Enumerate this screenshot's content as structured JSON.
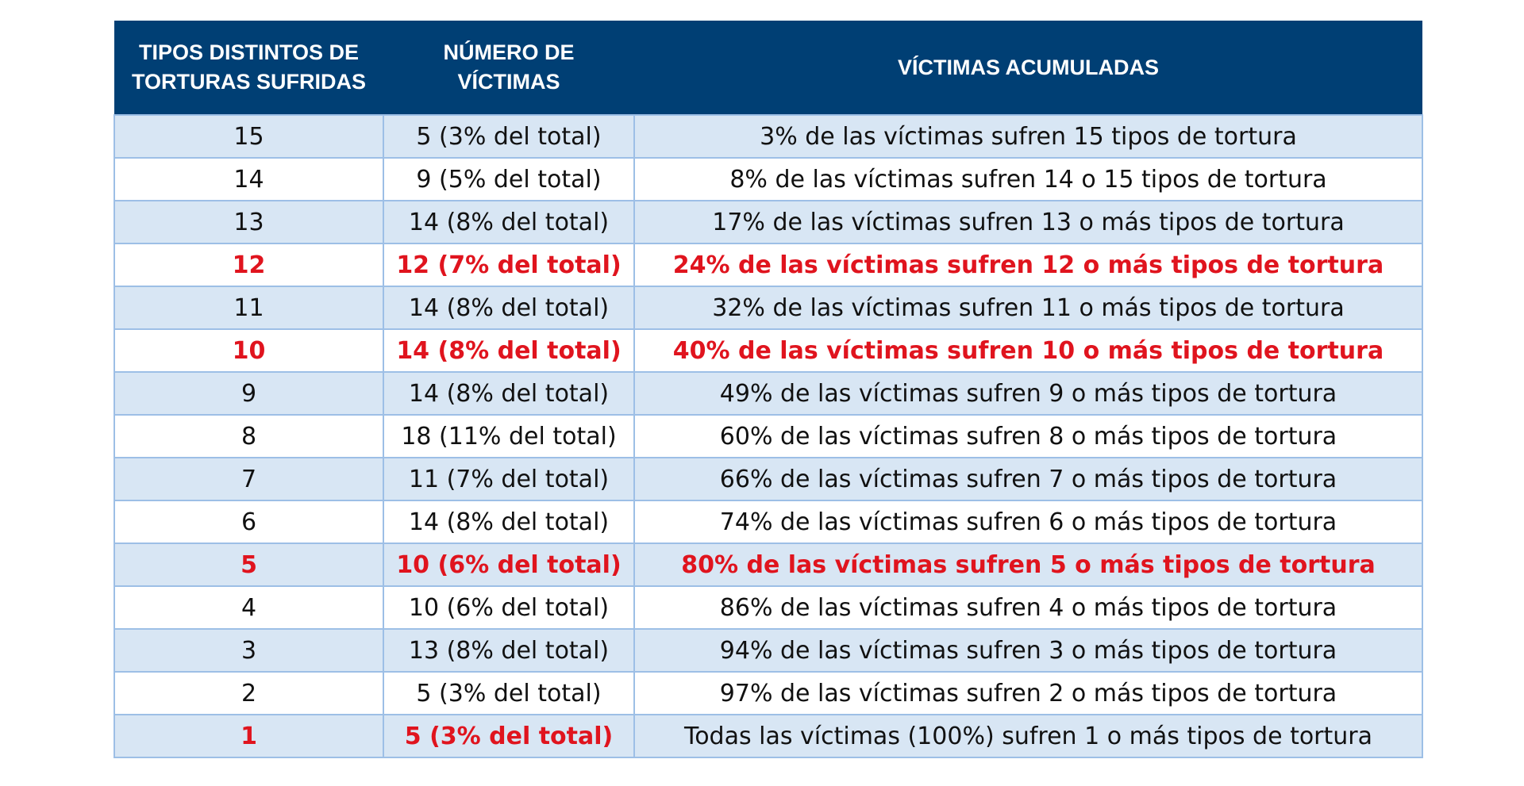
{
  "header": {
    "col1": "TIPOS DISTINTOS DE\nTORTURAS SUFRIDAS",
    "col2": "NÚMERO DE\nVÍCTIMAS",
    "col3": "VÍCTIMAS ACUMULADAS"
  },
  "colors": {
    "header_bg": "#003f74",
    "header_text": "#ffffff",
    "row_shade": "#d8e6f4",
    "highlight_text": "#e0141e",
    "grid": "#9dbfe6"
  },
  "rows": [
    {
      "tipos": "15",
      "numero": "5 (3% del total)",
      "acumuladas": "3% de las víctimas sufren 15 tipos de tortura",
      "highlight": false,
      "shaded": true
    },
    {
      "tipos": "14",
      "numero": "9 (5% del total)",
      "acumuladas": "8% de las víctimas sufren 14 o 15 tipos de tortura",
      "highlight": false,
      "shaded": false
    },
    {
      "tipos": "13",
      "numero": "14 (8% del total)",
      "acumuladas": "17% de las víctimas sufren 13 o más tipos de tortura",
      "highlight": false,
      "shaded": true
    },
    {
      "tipos": "12",
      "numero": "12 (7% del total)",
      "acumuladas": "24% de las víctimas sufren 12 o más tipos de tortura",
      "highlight": true,
      "shaded": false
    },
    {
      "tipos": "11",
      "numero": "14 (8% del total)",
      "acumuladas": "32% de las víctimas sufren 11 o más tipos de tortura",
      "highlight": false,
      "shaded": true
    },
    {
      "tipos": "10",
      "numero": "14 (8% del total)",
      "acumuladas": "40% de las víctimas sufren 10 o más tipos de tortura",
      "highlight": true,
      "shaded": false
    },
    {
      "tipos": "9",
      "numero": "14 (8% del total)",
      "acumuladas": "49% de las víctimas sufren 9 o más tipos de tortura",
      "highlight": false,
      "shaded": true
    },
    {
      "tipos": "8",
      "numero": "18 (11% del total)",
      "acumuladas": "60% de las víctimas sufren 8 o más tipos de tortura",
      "highlight": false,
      "shaded": false
    },
    {
      "tipos": "7",
      "numero": "11 (7% del total)",
      "acumuladas": "66% de las víctimas sufren 7 o más tipos de tortura",
      "highlight": false,
      "shaded": true
    },
    {
      "tipos": "6",
      "numero": "14 (8% del total)",
      "acumuladas": "74% de las víctimas sufren 6 o más tipos de tortura",
      "highlight": false,
      "shaded": false
    },
    {
      "tipos": "5",
      "numero": "10 (6% del total)",
      "acumuladas": "80% de las víctimas sufren 5 o más tipos de tortura",
      "highlight": true,
      "shaded": true
    },
    {
      "tipos": "4",
      "numero": "10 (6% del total)",
      "acumuladas": "86% de las víctimas sufren 4 o más tipos de tortura",
      "highlight": false,
      "shaded": false
    },
    {
      "tipos": "3",
      "numero": "13 (8% del total)",
      "acumuladas": "94% de las víctimas sufren 3 o más tipos de tortura",
      "highlight": false,
      "shaded": true
    },
    {
      "tipos": "2",
      "numero": "5 (3% del total)",
      "acumuladas": "97% de las víctimas sufren 2 o más tipos de tortura",
      "highlight": false,
      "shaded": false
    },
    {
      "tipos": "1",
      "numero": "5 (3% del total)",
      "acumuladas": "Todas las víctimas (100%) sufren 1 o más tipos de tortura",
      "highlight": true,
      "shaded": true,
      "highlight_partial": true
    }
  ]
}
